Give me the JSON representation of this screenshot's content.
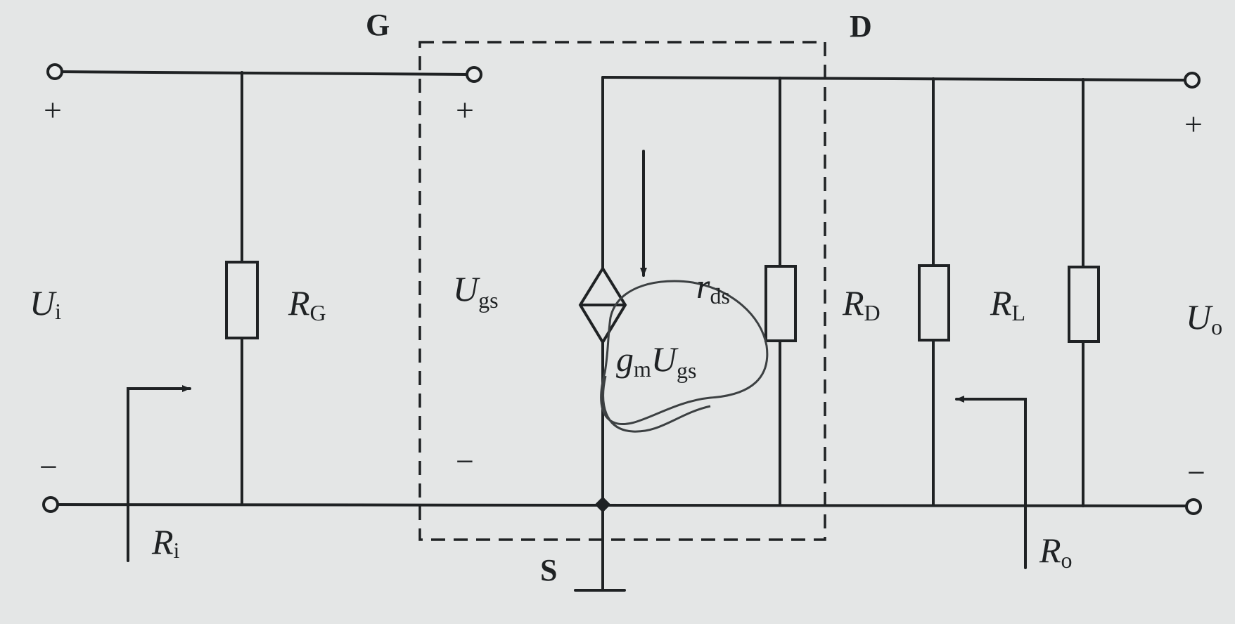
{
  "nodes": {
    "gate": "G",
    "drain": "D",
    "source": "S"
  },
  "components": {
    "RG": {
      "symbol": "R",
      "subscript": "G"
    },
    "RD": {
      "symbol": "R",
      "subscript": "D"
    },
    "RL": {
      "symbol": "R",
      "subscript": "L"
    },
    "rds": {
      "symbol": "r",
      "subscript": "ds"
    },
    "source": {
      "coef": "g",
      "coef_sub": "m",
      "symbol": "U",
      "subscript": "gs"
    }
  },
  "voltages": {
    "input": {
      "symbol": "U",
      "subscript": "i"
    },
    "ugs": {
      "symbol": "U",
      "subscript": "gs"
    },
    "output": {
      "symbol": "U",
      "subscript": "o"
    }
  },
  "resistances": {
    "Ri": {
      "symbol": "R",
      "subscript": "i"
    },
    "Ro": {
      "symbol": "R",
      "subscript": "o"
    }
  },
  "signs": {
    "plus": "+",
    "minus": "−"
  }
}
